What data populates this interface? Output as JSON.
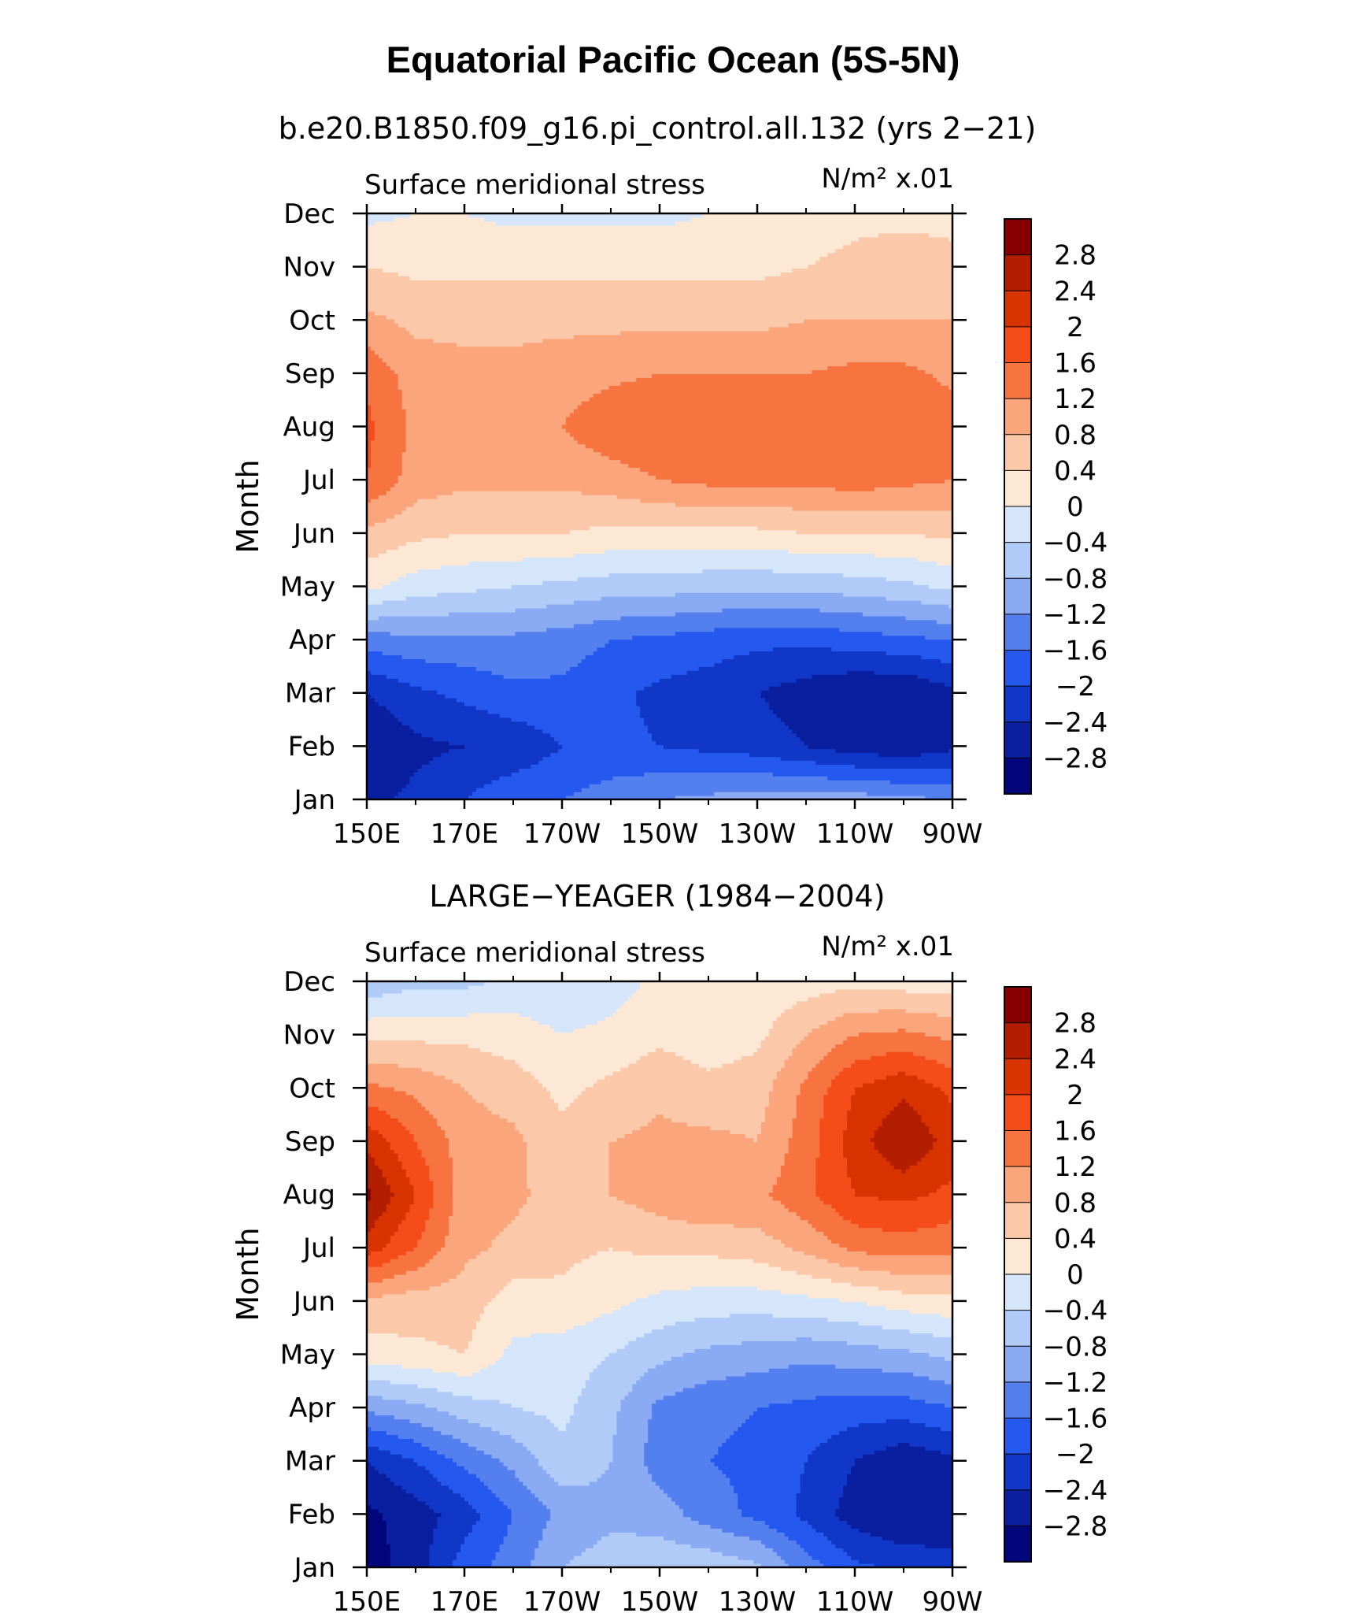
{
  "figure": {
    "title": "Equatorial Pacific Ocean (5S-5N)"
  },
  "colorbar_levels": [
    "2.8",
    "2.4",
    "2",
    "1.6",
    "1.2",
    "0.8",
    "0.4",
    "0",
    "−0.4",
    "−0.8",
    "−1.2",
    "−1.6",
    "−2",
    "−2.4",
    "−2.8"
  ],
  "colormap": [
    "#870000",
    "#b31e00",
    "#d93300",
    "#f54d1a",
    "#f77340",
    "#fba57d",
    "#fcc8aa",
    "#fde8d6",
    "#d5e6fb",
    "#b1cbf8",
    "#8aaaf3",
    "#5480ef",
    "#2458ee",
    "#1137c9",
    "#0a1fa0",
    "#03057a"
  ],
  "chart_data": [
    {
      "type": "heatmap",
      "subtitle": "b.e20.B1850.f09_g16.pi_control.all.132 (yrs 2−21)",
      "variable": "Surface meridional stress",
      "units": "N/m² x.01",
      "ylabel": "Month",
      "x_ticks": [
        "150E",
        "170E",
        "170W",
        "150W",
        "130W",
        "110W",
        "90W"
      ],
      "y_ticks": [
        "Jan",
        "Feb",
        "Mar",
        "Apr",
        "May",
        "Jun",
        "Jul",
        "Aug",
        "Sep",
        "Oct",
        "Nov",
        "Dec"
      ],
      "x": [
        150,
        160,
        170,
        180,
        190,
        200,
        210,
        220,
        230,
        240,
        250,
        260,
        270
      ],
      "z": [
        [
          -2.5,
          -2.3,
          -2.0,
          -1.7,
          -1.6,
          -1.4,
          -1.2,
          -1.1,
          -1.0,
          -1.0,
          -1.0,
          -1.1,
          -1.2
        ],
        [
          -2.8,
          -2.5,
          -2.4,
          -2.3,
          -2.0,
          -1.9,
          -2.0,
          -2.1,
          -2.2,
          -2.4,
          -2.6,
          -2.7,
          -2.5
        ],
        [
          -2.4,
          -2.1,
          -1.9,
          -1.7,
          -1.7,
          -1.9,
          -2.1,
          -2.2,
          -2.4,
          -2.6,
          -2.8,
          -2.8,
          -2.5
        ],
        [
          -1.4,
          -1.3,
          -1.3,
          -1.3,
          -1.4,
          -1.6,
          -1.7,
          -1.8,
          -1.9,
          -1.9,
          -1.8,
          -1.7,
          -1.6
        ],
        [
          0.1,
          -0.2,
          -0.3,
          -0.4,
          -0.5,
          -0.6,
          -0.6,
          -0.7,
          -0.7,
          -0.7,
          -0.6,
          -0.5,
          -0.3
        ],
        [
          0.7,
          0.5,
          0.4,
          0.4,
          0.4,
          0.3,
          0.3,
          0.3,
          0.3,
          0.4,
          0.4,
          0.4,
          0.5
        ],
        [
          1.6,
          1.0,
          0.9,
          0.9,
          0.9,
          1.0,
          1.2,
          1.3,
          1.3,
          1.3,
          1.4,
          1.3,
          1.2
        ],
        [
          1.7,
          1.1,
          1.0,
          1.1,
          1.2,
          1.5,
          1.6,
          1.5,
          1.5,
          1.5,
          1.6,
          1.6,
          1.4
        ],
        [
          1.5,
          1.0,
          0.9,
          0.9,
          1.0,
          1.1,
          1.2,
          1.2,
          1.2,
          1.2,
          1.3,
          1.3,
          1.1
        ],
        [
          0.9,
          0.7,
          0.7,
          0.7,
          0.7,
          0.7,
          0.7,
          0.7,
          0.7,
          0.8,
          0.8,
          0.8,
          0.8
        ],
        [
          0.4,
          0.3,
          0.3,
          0.3,
          0.3,
          0.3,
          0.3,
          0.3,
          0.3,
          0.4,
          0.5,
          0.6,
          0.5
        ],
        [
          -0.1,
          0.0,
          0.0,
          -0.1,
          -0.1,
          -0.1,
          -0.1,
          0.0,
          0.1,
          0.2,
          0.3,
          0.3,
          0.3
        ]
      ]
    },
    {
      "type": "heatmap",
      "subtitle": "LARGE−YEAGER (1984−2004)",
      "variable": "Surface meridional stress",
      "units": "N/m² x.01",
      "ylabel": "Month",
      "x_ticks": [
        "150E",
        "170E",
        "170W",
        "150W",
        "130W",
        "110W",
        "90W"
      ],
      "y_ticks": [
        "Jan",
        "Feb",
        "Mar",
        "Apr",
        "May",
        "Jun",
        "Jul",
        "Aug",
        "Sep",
        "Oct",
        "Nov",
        "Dec"
      ],
      "x": [
        150,
        160,
        170,
        180,
        190,
        200,
        210,
        220,
        230,
        240,
        250,
        260,
        270
      ],
      "z": [
        [
          -3.0,
          -2.6,
          -1.8,
          -1.4,
          -0.8,
          -0.6,
          -0.5,
          -0.5,
          -0.7,
          -1.4,
          -1.9,
          -2.1,
          -2.3
        ],
        [
          -2.9,
          -2.6,
          -2.2,
          -1.6,
          -1.1,
          -0.9,
          -1.0,
          -1.4,
          -1.7,
          -2.1,
          -2.6,
          -2.8,
          -2.6
        ],
        [
          -2.4,
          -2.0,
          -1.5,
          -1.1,
          -0.5,
          -0.8,
          -1.4,
          -1.6,
          -1.7,
          -2.0,
          -2.4,
          -2.7,
          -2.5
        ],
        [
          -1.1,
          -0.9,
          -0.6,
          -0.4,
          -0.3,
          -0.7,
          -1.3,
          -1.5,
          -1.6,
          -1.7,
          -1.8,
          -1.8,
          -1.6
        ],
        [
          0.2,
          0.3,
          0.4,
          -0.1,
          -0.2,
          -0.4,
          -0.7,
          -0.9,
          -1.0,
          -1.1,
          -1.0,
          -0.9,
          -0.7
        ],
        [
          0.7,
          0.6,
          0.6,
          0.2,
          0.3,
          0.1,
          -0.1,
          -0.2,
          -0.2,
          -0.1,
          0.0,
          0.2,
          0.3
        ],
        [
          2.2,
          1.6,
          0.9,
          0.7,
          0.5,
          0.4,
          0.5,
          0.5,
          0.6,
          0.9,
          1.3,
          1.4,
          1.3
        ],
        [
          2.9,
          2.0,
          1.0,
          0.9,
          0.6,
          0.8,
          1.0,
          1.2,
          1.1,
          1.5,
          2.0,
          2.1,
          1.9
        ],
        [
          2.3,
          1.6,
          1.0,
          0.9,
          0.5,
          0.8,
          0.9,
          0.9,
          0.8,
          1.4,
          2.2,
          2.8,
          2.2
        ],
        [
          1.3,
          1.1,
          0.8,
          0.6,
          0.3,
          0.5,
          0.7,
          0.5,
          0.6,
          1.3,
          2.0,
          2.3,
          1.9
        ],
        [
          0.3,
          0.3,
          0.3,
          0.2,
          0.0,
          0.1,
          0.3,
          0.2,
          0.3,
          0.8,
          1.2,
          1.3,
          1.1
        ],
        [
          -0.7,
          -0.5,
          -0.5,
          -0.3,
          -0.3,
          -0.2,
          0.1,
          0.1,
          0.1,
          0.2,
          0.3,
          0.2,
          0.2
        ]
      ]
    }
  ]
}
